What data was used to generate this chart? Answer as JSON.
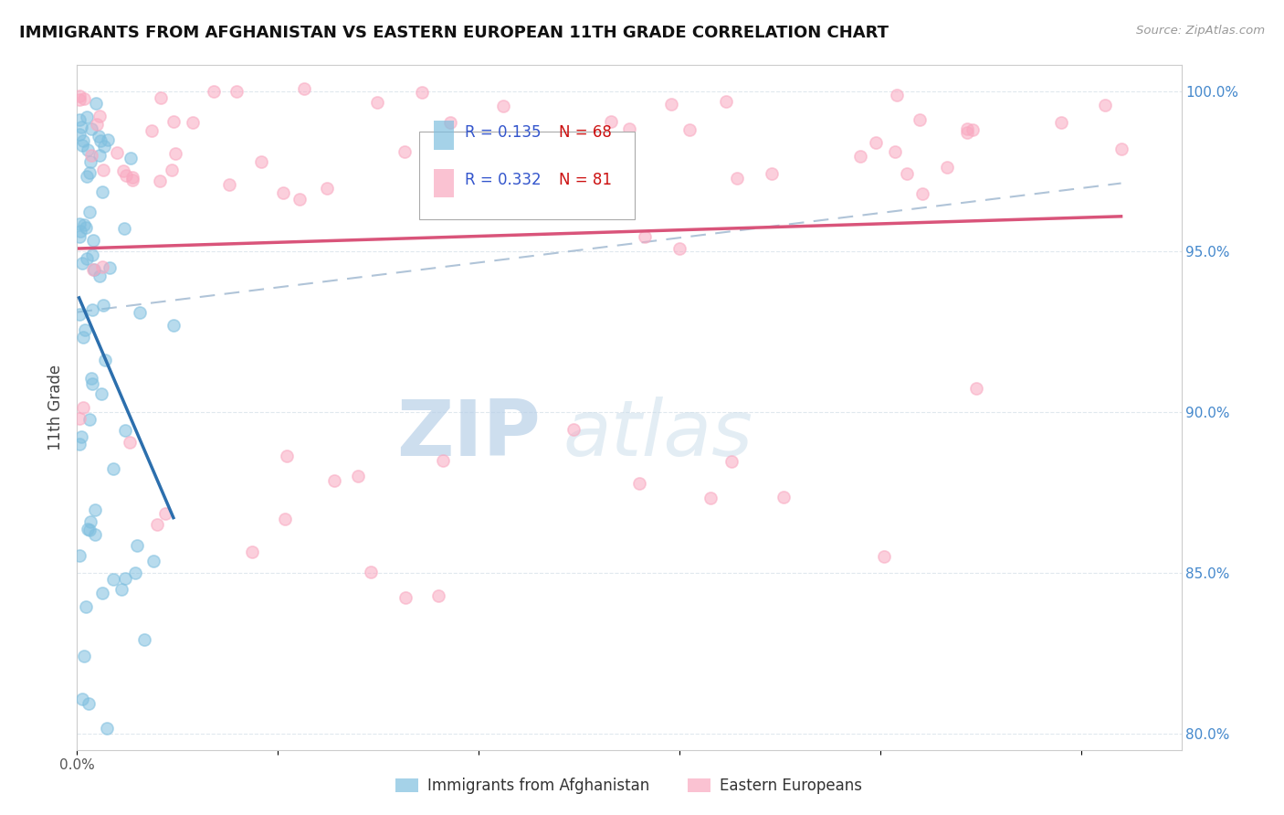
{
  "title": "IMMIGRANTS FROM AFGHANISTAN VS EASTERN EUROPEAN 11TH GRADE CORRELATION CHART",
  "source": "Source: ZipAtlas.com",
  "ylabel": "11th Grade",
  "xlim": [
    0.0,
    0.055
  ],
  "ylim": [
    0.795,
    1.008
  ],
  "xticks": [
    0.0,
    0.01,
    0.02,
    0.03,
    0.04,
    0.05
  ],
  "xticklabels": [
    "0.0%",
    "",
    "",
    "",
    "",
    ""
  ],
  "yticks": [
    0.8,
    0.85,
    0.9,
    0.95,
    1.0
  ],
  "yticklabels": [
    "80.0%",
    "85.0%",
    "90.0%",
    "95.0%",
    "100.0%"
  ],
  "afghanistan_R": 0.135,
  "afghanistan_N": 68,
  "eastern_R": 0.332,
  "eastern_N": 81,
  "afghanistan_color": "#7fbfdf",
  "eastern_color": "#f9a8c0",
  "afghanistan_line_color": "#2c6fad",
  "eastern_line_color": "#d9547a",
  "combined_line_color": "#b0c4d8",
  "watermark_color": "#dce8f0",
  "legend_text_color": "#3355cc",
  "legend_n_color": "#cc1111",
  "grid_color": "#e0e8ee",
  "ytick_color": "#4488cc",
  "spine_color": "#cccccc"
}
